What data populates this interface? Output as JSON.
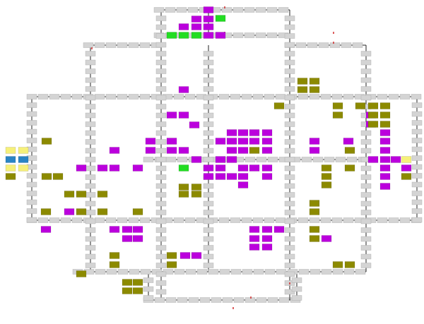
{
  "diagram": {
    "colors": {
      "corridor_node": "#d4d4d4",
      "node_border": "#a8a8a8",
      "edge": "#202020",
      "purple": "#bb00dd",
      "green": "#22dd22",
      "olive": "#8c8a00",
      "yellow": "#f6f07a",
      "blue": "#2a84c4",
      "marker": "#d02020"
    },
    "node_types": [
      "corridor",
      "purple",
      "green",
      "olive",
      "yellow",
      "blue"
    ]
  }
}
